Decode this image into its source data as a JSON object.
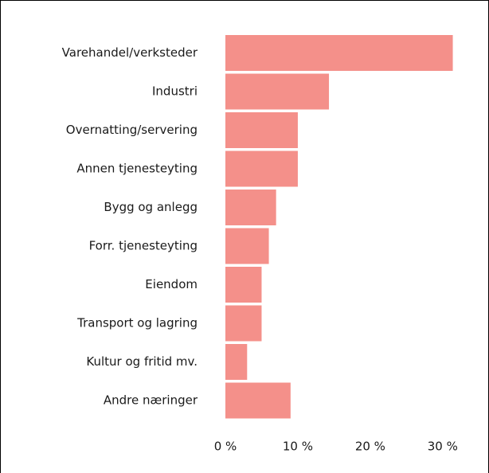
{
  "chart_data": {
    "type": "barh",
    "categories": [
      "Varehandel/verksteder",
      "Industri",
      "Overnatting/servering",
      "Annen tjenesteyting",
      "Bygg og anlegg",
      "Forr. tjenesteyting",
      "Eiendom",
      "Transport og lagring",
      "Kultur og fritid mv.",
      "Andre næringer"
    ],
    "values": [
      31.4,
      14.3,
      10,
      10,
      7,
      6,
      5,
      5,
      3,
      9
    ],
    "color": "#f4908a",
    "xlim": [
      0,
      32
    ],
    "xticks": [
      {
        "value": 0,
        "label": "0 %"
      },
      {
        "value": 10,
        "label": "10 %"
      },
      {
        "value": 20,
        "label": "20 %"
      },
      {
        "value": 30,
        "label": "30 %"
      }
    ],
    "grid": false
  }
}
